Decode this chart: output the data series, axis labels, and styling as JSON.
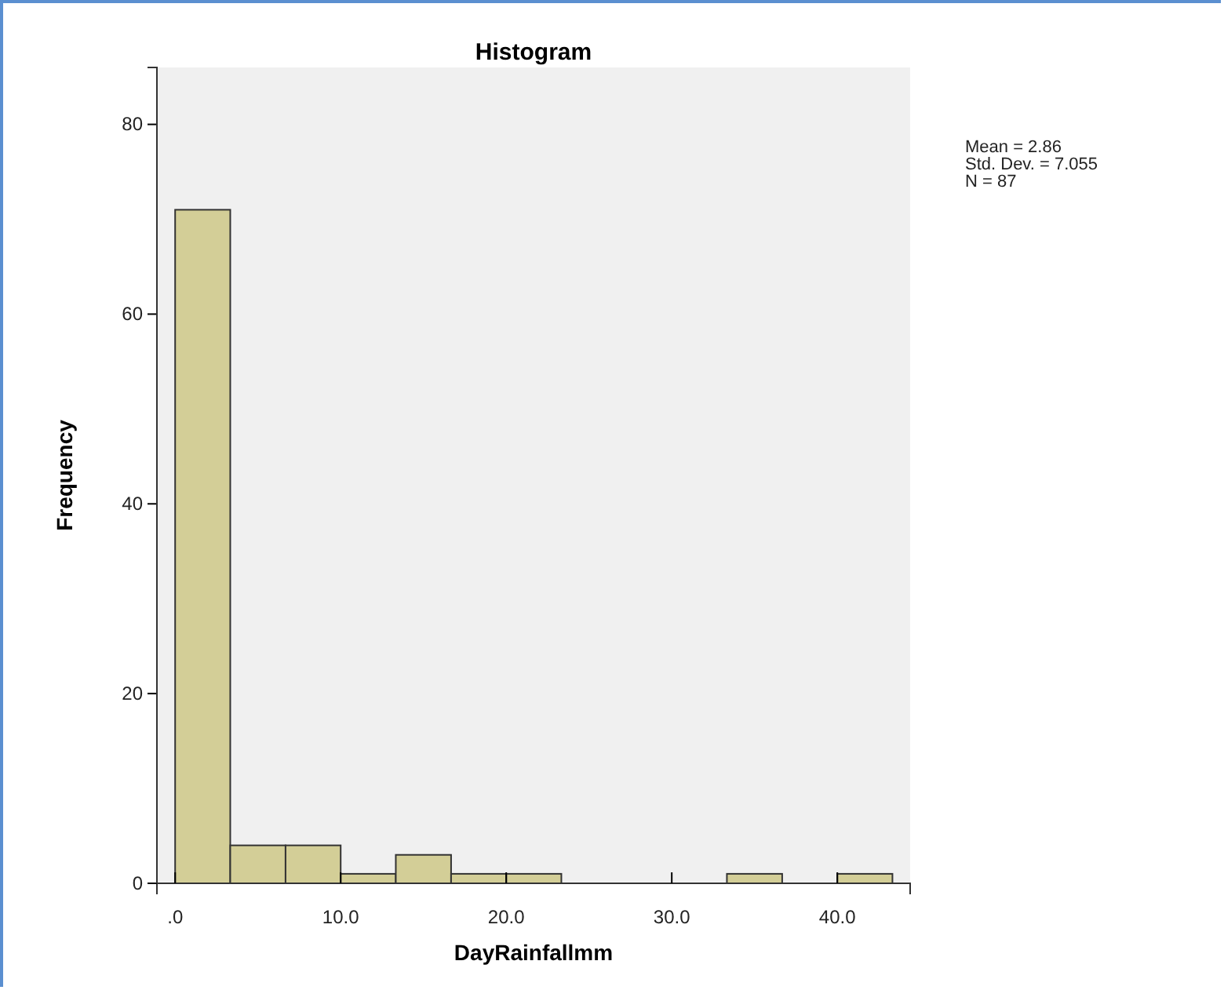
{
  "chart_data": {
    "type": "histogram",
    "title": "Histogram",
    "xlabel": "DayRainfallmm",
    "ylabel": "Frequency",
    "bins": [
      0,
      3.33,
      6.67,
      10,
      13.33,
      16.67,
      20,
      23.33,
      26.67,
      30,
      33.33,
      36.67,
      40,
      43.33
    ],
    "values": [
      71,
      4,
      4,
      1,
      3,
      1,
      1,
      0,
      0,
      0,
      1,
      0,
      1
    ],
    "color": "#d3ce97",
    "xlim": [
      -1.1,
      44.4
    ],
    "ylim": [
      0,
      86
    ],
    "xticks": [
      {
        "value": 0,
        "label": ".0"
      },
      {
        "value": 10,
        "label": "10.0"
      },
      {
        "value": 20,
        "label": "20.0"
      },
      {
        "value": 30,
        "label": "30.0"
      },
      {
        "value": 40,
        "label": "40.0"
      }
    ],
    "yticks": [
      0,
      20,
      40,
      60,
      80
    ],
    "annotations": [
      "Mean = 2.86",
      "Std. Dev. = 7.055",
      "N = 87"
    ],
    "grid": false
  }
}
